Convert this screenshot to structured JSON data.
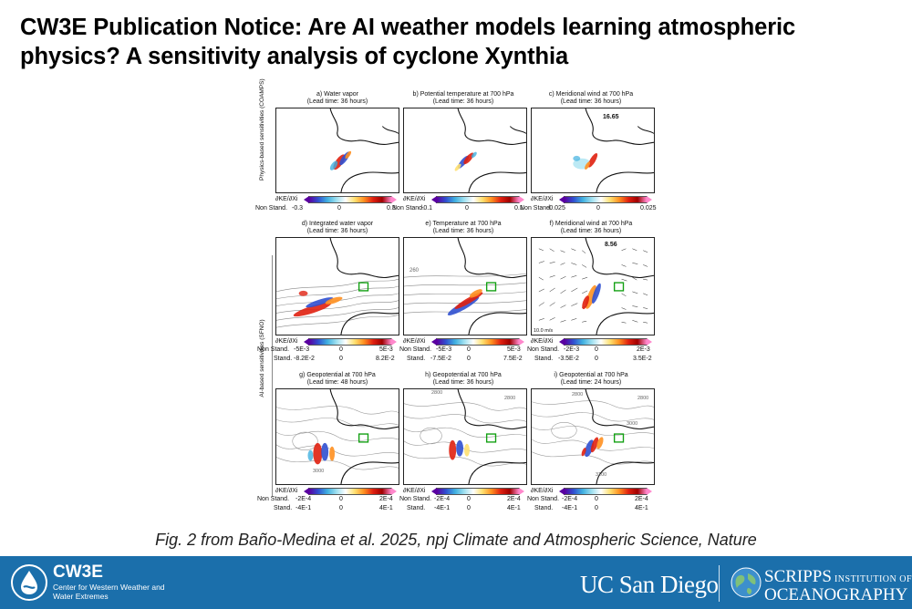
{
  "title": "CW3E Publication Notice: Are AI weather models learning atmospheric physics? A sensitivity analysis of cyclone Xynthia",
  "figure": {
    "row_labels": {
      "physics": "Physics-based sensitivities (COAMPS)",
      "ai": "AI-based sensitivities (SFNO)"
    },
    "panels": [
      {
        "title": "a) Water vapor",
        "lead": "(Lead time: 36 hours)",
        "badge": ""
      },
      {
        "title": "b) Potential temperature at 700 hPa",
        "lead": "(Lead time: 36 hours)",
        "badge": ""
      },
      {
        "title": "c) Meridional wind at 700 hPa",
        "lead": "(Lead time: 36 hours)",
        "badge": "16.65"
      },
      {
        "title": "d) Integrated water vapor",
        "lead": "(Lead time: 36 hours)",
        "badge": ""
      },
      {
        "title": "e) Temperature at 700 hPa",
        "lead": "(Lead time: 36 hours)",
        "badge": ""
      },
      {
        "title": "f) Meridional wind at 700 hPa",
        "lead": "(Lead time: 36 hours)",
        "badge": "8.56"
      },
      {
        "title": "g) Geopotential at 700 hPa",
        "lead": "(Lead time: 48 hours)",
        "badge": ""
      },
      {
        "title": "h) Geopotential at 700 hPa",
        "lead": "(Lead time: 36  hours)",
        "badge": ""
      },
      {
        "title": "i) Geopotential at 700 hPa",
        "lead": "(Lead time: 24 hours)",
        "badge": ""
      }
    ],
    "colorbars": [
      {
        "label": "∂KE/∂Xi",
        "ns": "Non Stand.",
        "ns_min": "-0.3",
        "ns_mid": "0",
        "ns_max": "0.3",
        "st": "",
        "st_min": "",
        "st_mid": "",
        "st_max": ""
      },
      {
        "label": "∂KE/∂Xi",
        "ns": "Non Stand.",
        "ns_min": "-0.1",
        "ns_mid": "0",
        "ns_max": "0.1",
        "st": "",
        "st_min": "",
        "st_mid": "",
        "st_max": ""
      },
      {
        "label": "∂KE/∂Xi",
        "ns": "Non Stand.",
        "ns_min": "-0.025",
        "ns_mid": "0",
        "ns_max": "0.025",
        "st": "",
        "st_min": "",
        "st_mid": "",
        "st_max": ""
      },
      {
        "label": "∂KE/∂Xi",
        "ns": "Non Stand.",
        "ns_min": "-5E-3",
        "ns_mid": "0",
        "ns_max": "5E-3",
        "st": "Stand.",
        "st_min": "-8.2E-2",
        "st_mid": "0",
        "st_max": "8.2E-2"
      },
      {
        "label": "∂KE/∂Xi",
        "ns": "Non Stand.",
        "ns_min": "-5E-3",
        "ns_mid": "0",
        "ns_max": "5E-3",
        "st": "Stand.",
        "st_min": "-7.5E-2",
        "st_mid": "0",
        "st_max": "7.5E-2"
      },
      {
        "label": "∂KE/∂Xi",
        "ns": "Non Stand.",
        "ns_min": "-2E-3",
        "ns_mid": "0",
        "ns_max": "2E-3",
        "st": "Stand.",
        "st_min": "-3.5E-2",
        "st_mid": "0",
        "st_max": "3.5E-2"
      },
      {
        "label": "∂KE/∂Xi",
        "ns": "Non Stand.",
        "ns_min": "-2E-4",
        "ns_mid": "0",
        "ns_max": "2E-4",
        "st": "Stand.",
        "st_min": "-4E-1",
        "st_mid": "0",
        "st_max": "4E-1"
      },
      {
        "label": "∂KE/∂Xi",
        "ns": "Non Stand.",
        "ns_min": "-2E-4",
        "ns_mid": "0",
        "ns_max": "2E-4",
        "st": "Stand.",
        "st_min": "-4E-1",
        "st_mid": "0",
        "st_max": "4E-1"
      },
      {
        "label": "∂KE/∂Xi",
        "ns": "Non Stand.",
        "ns_min": "-2E-4",
        "ns_mid": "0",
        "ns_max": "2E-4",
        "st": "Stand.",
        "st_min": "-4E-1",
        "st_mid": "0",
        "st_max": "4E-1"
      }
    ],
    "contour_labels": {
      "e": "260",
      "g": "3000",
      "h1": "2800",
      "h2": "2800",
      "i1": "2800",
      "i2": "2800",
      "i3": "3000",
      "i4": "3100",
      "f_scale": "10.0 m/s"
    }
  },
  "caption": "Fig. 2 from Baño-Medina et al. 2025, npj Climate and Atmospheric Science, Nature",
  "footer": {
    "cw3e_name": "CW3E",
    "cw3e_sub": "Center for Western Weather and Water Extremes",
    "ucsd": "UC San Diego",
    "scripps_line1": "SCRIPPS",
    "scripps_inst": " INSTITUTION OF",
    "scripps_line2": "OCEANOGRAPHY",
    "colors": {
      "footer_bg": "#1b6fab",
      "text": "#ffffff"
    },
    "icons": [
      "cw3e-water-drop-logo",
      "scripps-globe-logo"
    ]
  }
}
